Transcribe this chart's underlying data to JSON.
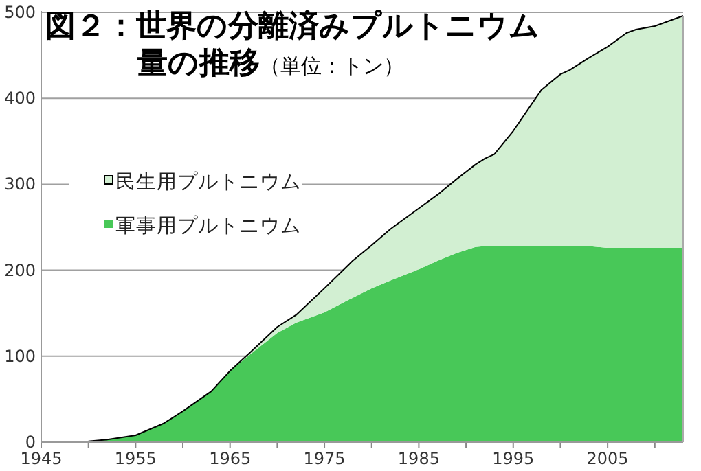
{
  "chart_data": {
    "type": "area",
    "stacked": true,
    "title": "図２：世界の分離済みプルトニウム量の推移",
    "subtitle": "（単位：トン）",
    "x": [
      1948,
      1950,
      1952,
      1955,
      1958,
      1960,
      1963,
      1965,
      1967,
      1970,
      1972,
      1975,
      1978,
      1980,
      1982,
      1985,
      1987,
      1989,
      1991,
      1992,
      1993,
      1995,
      1998,
      2000,
      2001,
      2003,
      2005,
      2007,
      2008,
      2010,
      2012,
      2013
    ],
    "series": [
      {
        "name": "軍事用プルトニウム",
        "color": "#48c858",
        "values": [
          0,
          1,
          3,
          8,
          22,
          36,
          59,
          83,
          101,
          127,
          139,
          151,
          168,
          179,
          188,
          201,
          211,
          220,
          227,
          228,
          228,
          228,
          228,
          228,
          228,
          228,
          226,
          226,
          226,
          226,
          226,
          226
        ]
      },
      {
        "name": "民生用プルトニウム",
        "color": "#d2efd2",
        "values": [
          0,
          0,
          0,
          0,
          0,
          0,
          0,
          0,
          2,
          7,
          9,
          28,
          43,
          50,
          60,
          71,
          77,
          86,
          96,
          102,
          107,
          134,
          182,
          200,
          205,
          219,
          234,
          250,
          254,
          258,
          266,
          270
        ]
      }
    ],
    "xlim": [
      1945,
      2013
    ],
    "ylim": [
      0,
      500
    ],
    "xticks": [
      1945,
      {
        "value": 1950,
        "label": null
      },
      1955,
      {
        "value": 1960,
        "label": null
      },
      1965,
      {
        "value": 1970,
        "label": null
      },
      1975,
      {
        "value": 1980,
        "label": null
      },
      1985,
      {
        "value": 1990,
        "label": null
      },
      1995,
      {
        "value": 2000,
        "label": null
      },
      2005,
      {
        "value": 2010,
        "label": null
      }
    ],
    "yticks": [
      0,
      100,
      200,
      300,
      400,
      500
    ],
    "grid": "y",
    "legend": "left"
  }
}
